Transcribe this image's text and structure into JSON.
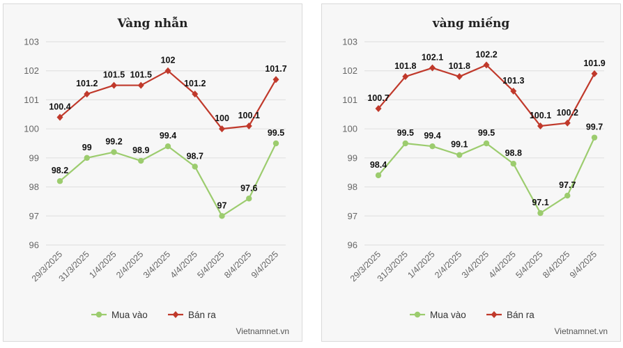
{
  "chart_data": [
    {
      "type": "line",
      "title": "Vàng nhẫn",
      "categories": [
        "29/3/2025",
        "31/3/2025",
        "1/4/2025",
        "2/4/2025",
        "3/4/2025",
        "4/4/2025",
        "5/4/2025",
        "8/4/2025",
        "9/4/2025"
      ],
      "ylim": [
        96,
        103
      ],
      "yticks": [
        96,
        97,
        98,
        99,
        100,
        101,
        102,
        103
      ],
      "grid": true,
      "legend": "bottom",
      "series": [
        {
          "name": "Mua vào",
          "color": "#9ccc6e",
          "marker": "circle",
          "values": [
            98.2,
            99,
            99.2,
            98.9,
            99.4,
            98.7,
            97,
            97.6,
            99.5
          ]
        },
        {
          "name": "Bán ra",
          "color": "#c0392b",
          "marker": "diamond",
          "values": [
            100.4,
            101.2,
            101.5,
            101.5,
            102,
            101.2,
            100,
            100.1,
            101.7
          ]
        }
      ],
      "source": "Vietnamnet.vn"
    },
    {
      "type": "line",
      "title": "vàng miếng",
      "categories": [
        "29/3/2025",
        "31/3/2025",
        "1/4/2025",
        "2/4/2025",
        "3/4/2025",
        "4/4/2025",
        "5/4/2025",
        "8/4/2025",
        "9/4/2025"
      ],
      "ylim": [
        96,
        103
      ],
      "yticks": [
        96,
        97,
        98,
        99,
        100,
        101,
        102,
        103
      ],
      "grid": true,
      "legend": "bottom",
      "series": [
        {
          "name": "Mua vào",
          "color": "#9ccc6e",
          "marker": "circle",
          "values": [
            98.4,
            99.5,
            99.4,
            99.1,
            99.5,
            98.8,
            97.1,
            97.7,
            99.7
          ]
        },
        {
          "name": "Bán ra",
          "color": "#c0392b",
          "marker": "diamond",
          "values": [
            100.7,
            101.8,
            102.1,
            101.8,
            102.2,
            101.3,
            100.1,
            100.2,
            101.9
          ]
        }
      ],
      "source": "Vietnamnet.vn"
    }
  ]
}
